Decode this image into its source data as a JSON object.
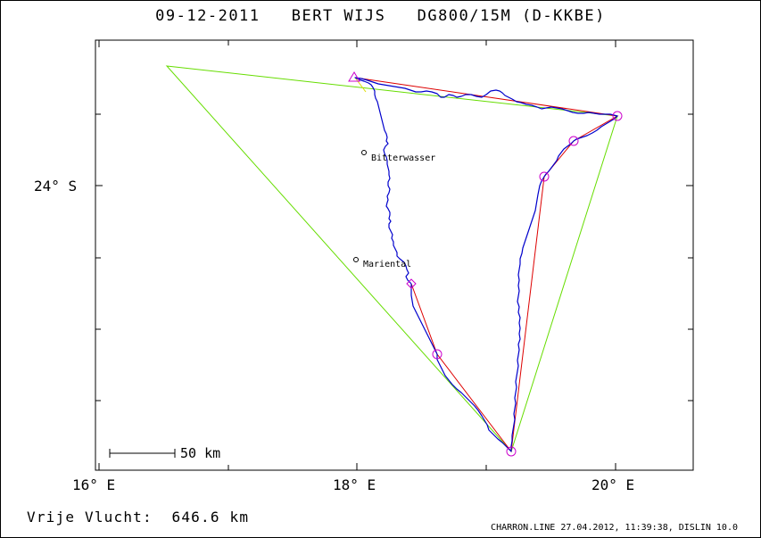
{
  "header": {
    "date": "09-12-2011",
    "pilot": "BERT WIJS",
    "glider": "DG800/15M (D-KKBE)"
  },
  "axes": {
    "x_ticks": [
      "16° E",
      "18° E",
      "20° E"
    ],
    "y_ticks": [
      "24° S"
    ]
  },
  "scale_bar": {
    "label": "50 km"
  },
  "places": [
    {
      "name": "Bitterwasser"
    },
    {
      "name": "Mariental"
    }
  ],
  "result": {
    "label": "Vrije Vlucht:",
    "distance": "646.6 km"
  },
  "footer": {
    "text": "CHARRON.LINE 27.04.2012, 11:39:38, DISLIN 10.0"
  },
  "colors": {
    "track": "#0000cc",
    "task_line": "#dd0000",
    "triangle": "#66dd00",
    "turnpoint": "#cc00cc",
    "start_leg": "#dddd00"
  }
}
